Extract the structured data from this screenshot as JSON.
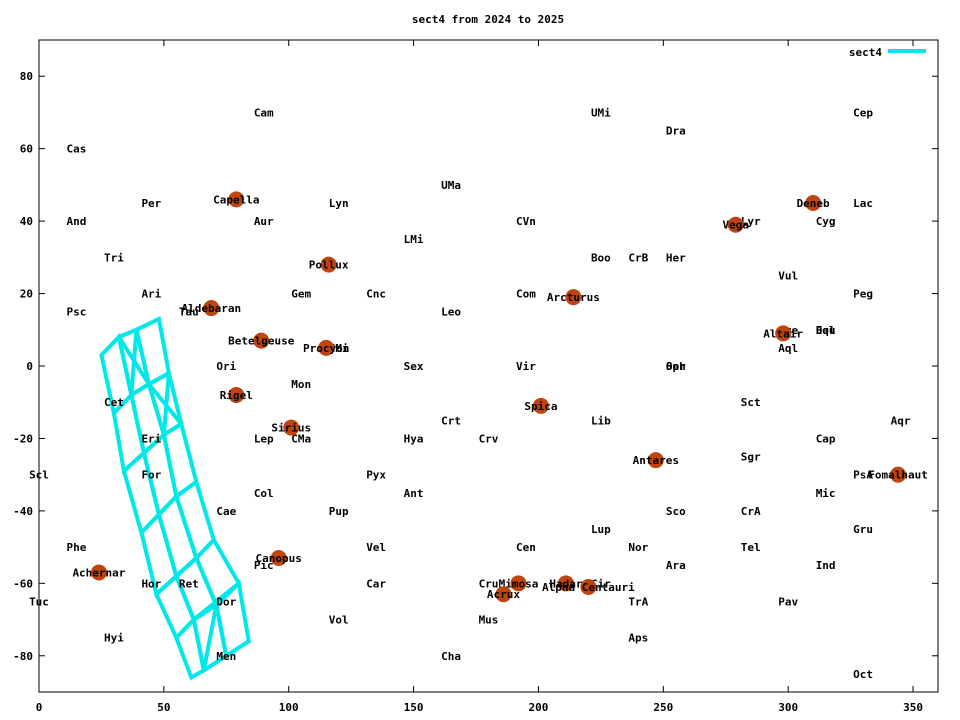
{
  "chart_data": {
    "type": "scatter",
    "title": "sect4 from 2024 to 2025",
    "xlabel": "",
    "ylabel": "",
    "xlim": [
      0,
      360
    ],
    "ylim": [
      -90,
      90
    ],
    "x_ticks": [
      0,
      50,
      100,
      150,
      200,
      250,
      300,
      350
    ],
    "y_ticks": [
      -80,
      -60,
      -40,
      -20,
      0,
      20,
      40,
      60,
      80
    ],
    "grid": false,
    "legend": {
      "position": "top-right",
      "entries": [
        {
          "name": "sect4",
          "color": "#00e8e8"
        }
      ]
    },
    "constellations": [
      {
        "name": "Cam",
        "x": 90,
        "y": 70
      },
      {
        "name": "UMi",
        "x": 225,
        "y": 70
      },
      {
        "name": "Cep",
        "x": 330,
        "y": 70
      },
      {
        "name": "Dra",
        "x": 255,
        "y": 65
      },
      {
        "name": "Cas",
        "x": 15,
        "y": 60
      },
      {
        "name": "UMa",
        "x": 165,
        "y": 50
      },
      {
        "name": "Per",
        "x": 45,
        "y": 45
      },
      {
        "name": "Lyn",
        "x": 120,
        "y": 45
      },
      {
        "name": "Lac",
        "x": 330,
        "y": 45
      },
      {
        "name": "And",
        "x": 15,
        "y": 40
      },
      {
        "name": "Aur",
        "x": 90,
        "y": 40
      },
      {
        "name": "CVn",
        "x": 195,
        "y": 40
      },
      {
        "name": "Cyg",
        "x": 315,
        "y": 40
      },
      {
        "name": "Lyr",
        "x": 285,
        "y": 40
      },
      {
        "name": "LMi",
        "x": 150,
        "y": 35
      },
      {
        "name": "Tri",
        "x": 30,
        "y": 30
      },
      {
        "name": "Boo",
        "x": 225,
        "y": 30
      },
      {
        "name": "CrB",
        "x": 240,
        "y": 30
      },
      {
        "name": "Her",
        "x": 255,
        "y": 30
      },
      {
        "name": "Vul",
        "x": 300,
        "y": 25
      },
      {
        "name": "Ari",
        "x": 45,
        "y": 20
      },
      {
        "name": "Gem",
        "x": 105,
        "y": 20
      },
      {
        "name": "Cnc",
        "x": 135,
        "y": 20
      },
      {
        "name": "Com",
        "x": 195,
        "y": 20
      },
      {
        "name": "Peg",
        "x": 330,
        "y": 20
      },
      {
        "name": "Psc",
        "x": 15,
        "y": 15
      },
      {
        "name": "Tau",
        "x": 60,
        "y": 15
      },
      {
        "name": "Leo",
        "x": 165,
        "y": 15
      },
      {
        "name": "Equ",
        "x": 315,
        "y": 10
      },
      {
        "name": "Del",
        "x": 315,
        "y": 10
      },
      {
        "name": "Sge",
        "x": 300,
        "y": 10
      },
      {
        "name": "CMi",
        "x": 120,
        "y": 5
      },
      {
        "name": "Aql",
        "x": 300,
        "y": 5
      },
      {
        "name": "Ori",
        "x": 75,
        "y": 0
      },
      {
        "name": "Sex",
        "x": 150,
        "y": 0
      },
      {
        "name": "Vir",
        "x": 195,
        "y": 0
      },
      {
        "name": "Oph",
        "x": 255,
        "y": 0
      },
      {
        "name": "Ser",
        "x": 255,
        "y": 0
      },
      {
        "name": "Mon",
        "x": 105,
        "y": -5
      },
      {
        "name": "Cet",
        "x": 30,
        "y": -10
      },
      {
        "name": "Sct",
        "x": 285,
        "y": -10
      },
      {
        "name": "Crt",
        "x": 165,
        "y": -15
      },
      {
        "name": "Lib",
        "x": 225,
        "y": -15
      },
      {
        "name": "Aqr",
        "x": 345,
        "y": -15
      },
      {
        "name": "Eri",
        "x": 45,
        "y": -20
      },
      {
        "name": "Lep",
        "x": 90,
        "y": -20
      },
      {
        "name": "CMa",
        "x": 105,
        "y": -20
      },
      {
        "name": "Hya",
        "x": 150,
        "y": -20
      },
      {
        "name": "Crv",
        "x": 180,
        "y": -20
      },
      {
        "name": "Cap",
        "x": 315,
        "y": -20
      },
      {
        "name": "Sgr",
        "x": 285,
        "y": -25
      },
      {
        "name": "Scl",
        "x": 0,
        "y": -30
      },
      {
        "name": "For",
        "x": 45,
        "y": -30
      },
      {
        "name": "Pyx",
        "x": 135,
        "y": -30
      },
      {
        "name": "PsA",
        "x": 330,
        "y": -30
      },
      {
        "name": "Col",
        "x": 90,
        "y": -35
      },
      {
        "name": "Ant",
        "x": 150,
        "y": -35
      },
      {
        "name": "Mic",
        "x": 315,
        "y": -35
      },
      {
        "name": "Cae",
        "x": 75,
        "y": -40
      },
      {
        "name": "Pup",
        "x": 120,
        "y": -40
      },
      {
        "name": "Sco",
        "x": 255,
        "y": -40
      },
      {
        "name": "CrA",
        "x": 285,
        "y": -40
      },
      {
        "name": "Lup",
        "x": 225,
        "y": -45
      },
      {
        "name": "Gru",
        "x": 330,
        "y": -45
      },
      {
        "name": "Phe",
        "x": 15,
        "y": -50
      },
      {
        "name": "Vel",
        "x": 135,
        "y": -50
      },
      {
        "name": "Cen",
        "x": 195,
        "y": -50
      },
      {
        "name": "Nor",
        "x": 240,
        "y": -50
      },
      {
        "name": "Tel",
        "x": 285,
        "y": -50
      },
      {
        "name": "Pic",
        "x": 90,
        "y": -55
      },
      {
        "name": "Ara",
        "x": 255,
        "y": -55
      },
      {
        "name": "Ind",
        "x": 315,
        "y": -55
      },
      {
        "name": "Hor",
        "x": 45,
        "y": -60
      },
      {
        "name": "Ret",
        "x": 60,
        "y": -60
      },
      {
        "name": "Car",
        "x": 135,
        "y": -60
      },
      {
        "name": "Cru",
        "x": 180,
        "y": -60
      },
      {
        "name": "Cir",
        "x": 225,
        "y": -60
      },
      {
        "name": "Tuc",
        "x": 0,
        "y": -65
      },
      {
        "name": "Dor",
        "x": 75,
        "y": -65
      },
      {
        "name": "TrA",
        "x": 240,
        "y": -65
      },
      {
        "name": "Pav",
        "x": 300,
        "y": -65
      },
      {
        "name": "Vol",
        "x": 120,
        "y": -70
      },
      {
        "name": "Mus",
        "x": 180,
        "y": -70
      },
      {
        "name": "Hyi",
        "x": 30,
        "y": -75
      },
      {
        "name": "Aps",
        "x": 240,
        "y": -75
      },
      {
        "name": "Men",
        "x": 75,
        "y": -80
      },
      {
        "name": "Cha",
        "x": 165,
        "y": -80
      },
      {
        "name": "Oct",
        "x": 330,
        "y": -85
      }
    ],
    "stars": [
      {
        "name": "Capella",
        "x": 79,
        "y": 46
      },
      {
        "name": "Deneb",
        "x": 310,
        "y": 45
      },
      {
        "name": "Vega",
        "x": 279,
        "y": 39
      },
      {
        "name": "Pollux",
        "x": 116,
        "y": 28
      },
      {
        "name": "Arcturus",
        "x": 214,
        "y": 19
      },
      {
        "name": "Aldebaran",
        "x": 69,
        "y": 16
      },
      {
        "name": "Altair",
        "x": 298,
        "y": 9
      },
      {
        "name": "Betelgeuse",
        "x": 89,
        "y": 7
      },
      {
        "name": "Procyon",
        "x": 115,
        "y": 5
      },
      {
        "name": "Rigel",
        "x": 79,
        "y": -8
      },
      {
        "name": "Spica",
        "x": 201,
        "y": -11
      },
      {
        "name": "Sirius",
        "x": 101,
        "y": -17
      },
      {
        "name": "Antares",
        "x": 247,
        "y": -26
      },
      {
        "name": "Fomalhaut",
        "x": 344,
        "y": -30
      },
      {
        "name": "Canopus",
        "x": 96,
        "y": -53
      },
      {
        "name": "Achernar",
        "x": 24,
        "y": -57
      },
      {
        "name": "Mimosa",
        "x": 192,
        "y": -60
      },
      {
        "name": "Hadar",
        "x": 211,
        "y": -60
      },
      {
        "name": "Alpha Centauri",
        "x": 220,
        "y": -61
      },
      {
        "name": "Acrux",
        "x": 186,
        "y": -63
      }
    ],
    "series": [
      {
        "name": "sect4",
        "color": "#00e8e8",
        "cells": [
          [
            [
              25,
              3
            ],
            [
              32,
              8
            ],
            [
              37,
              -8
            ],
            [
              30,
              -13
            ]
          ],
          [
            [
              32,
              8
            ],
            [
              39,
              10
            ],
            [
              44,
              -5
            ],
            [
              37,
              -8
            ]
          ],
          [
            [
              39,
              10
            ],
            [
              48,
              13
            ],
            [
              52,
              -2
            ],
            [
              44,
              -5
            ]
          ],
          [
            [
              30,
              -13
            ],
            [
              37,
              -8
            ],
            [
              42,
              -24
            ],
            [
              34,
              -29
            ]
          ],
          [
            [
              37,
              -8
            ],
            [
              44,
              -5
            ],
            [
              50,
              -19
            ],
            [
              42,
              -24
            ]
          ],
          [
            [
              44,
              -5
            ],
            [
              52,
              -2
            ],
            [
              57,
              -16
            ],
            [
              50,
              -19
            ]
          ],
          [
            [
              34,
              -29
            ],
            [
              42,
              -24
            ],
            [
              48,
              -41
            ],
            [
              41,
              -46
            ]
          ],
          [
            [
              42,
              -24
            ],
            [
              50,
              -19
            ],
            [
              55,
              -36
            ],
            [
              48,
              -41
            ]
          ],
          [
            [
              50,
              -19
            ],
            [
              57,
              -16
            ],
            [
              63,
              -32
            ],
            [
              55,
              -36
            ]
          ],
          [
            [
              41,
              -46
            ],
            [
              48,
              -41
            ],
            [
              55,
              -58
            ],
            [
              47,
              -63
            ]
          ],
          [
            [
              48,
              -41
            ],
            [
              55,
              -36
            ],
            [
              63,
              -53
            ],
            [
              55,
              -58
            ]
          ],
          [
            [
              55,
              -36
            ],
            [
              63,
              -32
            ],
            [
              70,
              -48
            ],
            [
              63,
              -53
            ]
          ],
          [
            [
              47,
              -63
            ],
            [
              55,
              -58
            ],
            [
              62,
              -70
            ],
            [
              55,
              -75
            ]
          ],
          [
            [
              55,
              -58
            ],
            [
              63,
              -53
            ],
            [
              71,
              -66
            ],
            [
              62,
              -70
            ]
          ],
          [
            [
              63,
              -53
            ],
            [
              70,
              -48
            ],
            [
              80,
              -60
            ],
            [
              71,
              -66
            ]
          ],
          [
            [
              55,
              -75
            ],
            [
              62,
              -70
            ],
            [
              66,
              -84
            ],
            [
              61,
              -86
            ]
          ],
          [
            [
              62,
              -70
            ],
            [
              71,
              -66
            ],
            [
              75,
              -80
            ],
            [
              66,
              -84
            ]
          ],
          [
            [
              71,
              -66
            ],
            [
              80,
              -60
            ],
            [
              84,
              -76
            ],
            [
              75,
              -80
            ]
          ]
        ],
        "crosses": [
          [
            [
              32,
              8
            ],
            [
              44,
              -5
            ]
          ],
          [
            [
              39,
              10
            ],
            [
              37,
              -8
            ]
          ],
          [
            [
              50,
              -19
            ],
            [
              57,
              -16
            ]
          ],
          [
            [
              44,
              -5
            ],
            [
              57,
              -16
            ]
          ],
          [
            [
              52,
              -2
            ],
            [
              50,
              -19
            ]
          ],
          [
            [
              48,
              -41
            ],
            [
              55,
              -36
            ]
          ],
          [
            [
              55,
              -58
            ],
            [
              63,
              -53
            ]
          ],
          [
            [
              47,
              -63
            ],
            [
              55,
              -58
            ]
          ],
          [
            [
              62,
              -70
            ],
            [
              80,
              -60
            ]
          ],
          [
            [
              71,
              -66
            ],
            [
              75,
              -80
            ]
          ],
          [
            [
              66,
              -84
            ],
            [
              71,
              -66
            ]
          ]
        ]
      }
    ]
  }
}
